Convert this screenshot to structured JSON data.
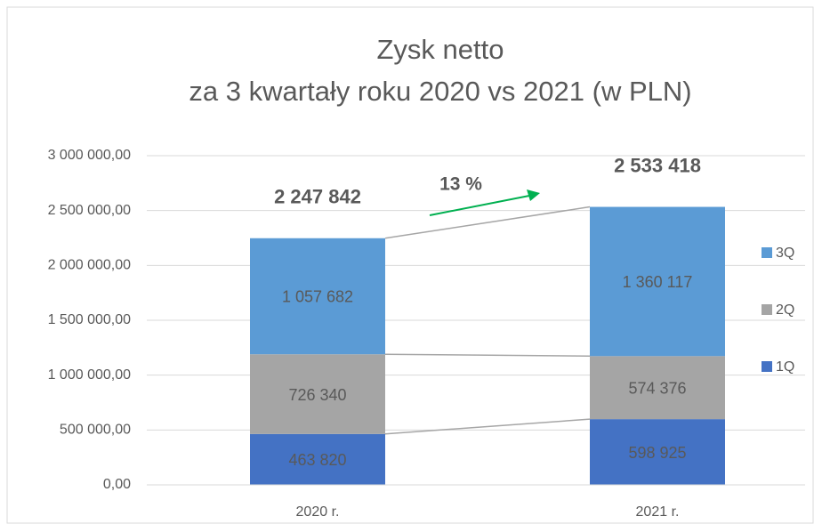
{
  "chart_data": {
    "type": "stacked_bar",
    "title": "Zysk netto",
    "subtitle": "za 3 kwartały roku 2020 vs 2021 (w PLN)",
    "categories": [
      "2020 r.",
      "2021 r."
    ],
    "series": [
      {
        "name": "1Q",
        "color": "#4472c4",
        "values": [
          463820,
          598925
        ],
        "value_labels": [
          "463 820",
          "598 925"
        ]
      },
      {
        "name": "2Q",
        "color": "#a5a5a5",
        "values": [
          726340,
          574376
        ],
        "value_labels": [
          "726 340",
          "574 376"
        ]
      },
      {
        "name": "3Q",
        "color": "#5b9bd5",
        "values": [
          1057682,
          1360117
        ],
        "value_labels": [
          "1 057 682",
          "1 360 117"
        ]
      }
    ],
    "totals": [
      2247842,
      2533418
    ],
    "total_labels": [
      "2 247 842",
      "2 533 418"
    ],
    "annotation": "13 %",
    "annotation_color": "#00b050",
    "ylim": [
      0,
      3000000
    ],
    "yticks": [
      {
        "value": 0,
        "label": "0,00"
      },
      {
        "value": 500000,
        "label": "500 000,00"
      },
      {
        "value": 1000000,
        "label": "1 000 000,00"
      },
      {
        "value": 1500000,
        "label": "1 500 000,00"
      },
      {
        "value": 2000000,
        "label": "2 000 000,00"
      },
      {
        "value": 2500000,
        "label": "2 500 000,00"
      },
      {
        "value": 3000000,
        "label": "3 000 000,00"
      }
    ],
    "grid": true,
    "legend": "right"
  }
}
